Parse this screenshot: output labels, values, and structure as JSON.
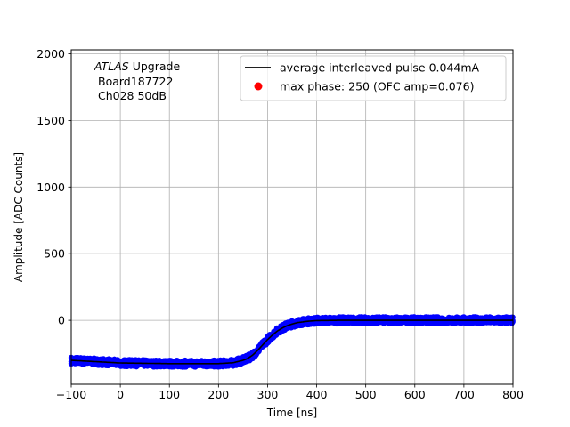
{
  "chart_data": {
    "type": "scatter",
    "xlabel": "Time [ns]",
    "ylabel": "Amplitude [ADC Counts]",
    "xlim": [
      -100,
      800
    ],
    "ylim": [
      -480,
      2030
    ],
    "x_ticks": [
      -100,
      0,
      100,
      200,
      300,
      400,
      500,
      600,
      700,
      800
    ],
    "y_ticks": [
      0,
      500,
      1000,
      1500,
      2000
    ],
    "grid": true,
    "legend_position": "top-right",
    "annotation": {
      "line1_italic": "ATLAS",
      "line1_rest": " Upgrade",
      "line2": "Board187722",
      "line3": "Ch028 50dB"
    },
    "series": [
      {
        "name": "average interleaved pulse 0.044mA",
        "kind": "line",
        "color": "#000000",
        "x": [
          -100,
          0,
          100,
          200,
          230,
          250,
          260,
          270,
          280,
          290,
          300,
          310,
          320,
          330,
          340,
          350,
          360,
          380,
          400,
          450,
          500,
          600,
          700,
          800
        ],
        "y": [
          -300,
          -320,
          -325,
          -325,
          -318,
          -300,
          -285,
          -260,
          -225,
          -185,
          -145,
          -110,
          -80,
          -58,
          -40,
          -28,
          -18,
          -8,
          -2,
          0,
          0,
          0,
          0,
          0
        ]
      },
      {
        "name": "max phase: 250 (OFC amp=0.076)",
        "kind": "point",
        "color": "#ff0000",
        "x": [],
        "y": []
      },
      {
        "kind": "band",
        "color": "#0000ff"
      }
    ]
  }
}
